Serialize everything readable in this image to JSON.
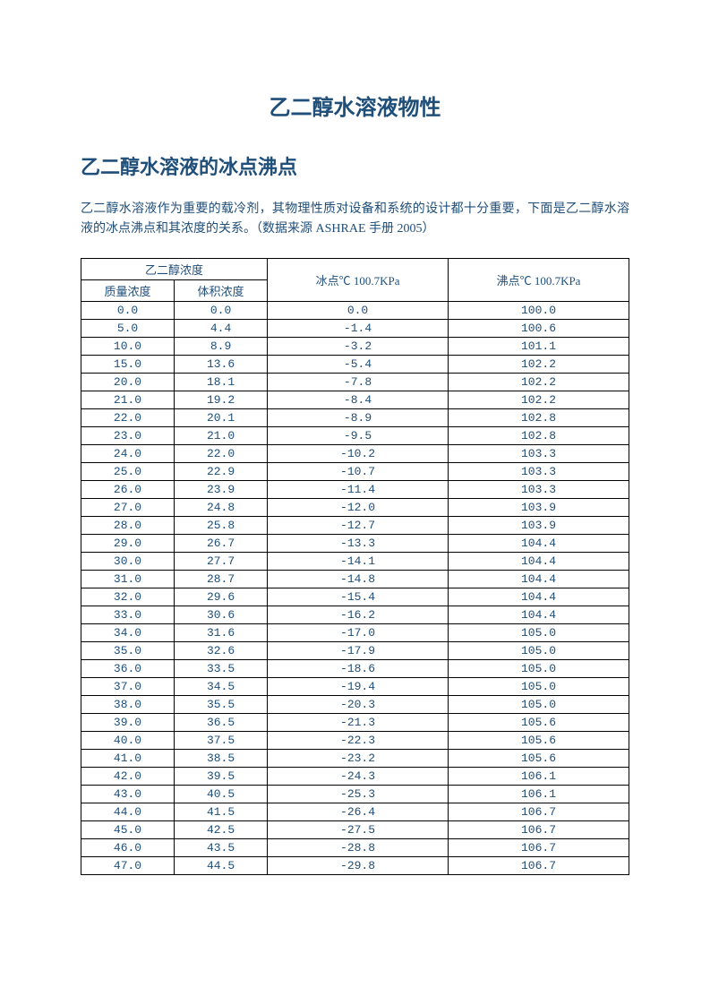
{
  "title": "乙二醇水溶液物性",
  "subtitle": "乙二醇水溶液的冰点沸点",
  "intro": "乙二醇水溶液作为重要的载冷剂，其物理性质对设备和系统的设计都十分重要，下面是乙二醇水溶液的冰点沸点和其浓度的关系。（数据来源 ASHRAE 手册 2005）",
  "table": {
    "header_group": "乙二醇浓度",
    "col_mass": "质量浓度",
    "col_vol": "体积浓度",
    "col_freeze": "冰点℃ 100.7KPa",
    "col_boil": "沸点℃ 100.7KPa",
    "rows": [
      [
        "0.0",
        "0.0",
        "0.0",
        "100.0"
      ],
      [
        "5.0",
        "4.4",
        "-1.4",
        "100.6"
      ],
      [
        "10.0",
        "8.9",
        "-3.2",
        "101.1"
      ],
      [
        "15.0",
        "13.6",
        "-5.4",
        "102.2"
      ],
      [
        "20.0",
        "18.1",
        "-7.8",
        "102.2"
      ],
      [
        "21.0",
        "19.2",
        "-8.4",
        "102.2"
      ],
      [
        "22.0",
        "20.1",
        "-8.9",
        "102.8"
      ],
      [
        "23.0",
        "21.0",
        "-9.5",
        "102.8"
      ],
      [
        "24.0",
        "22.0",
        "-10.2",
        "103.3"
      ],
      [
        "25.0",
        "22.9",
        "-10.7",
        "103.3"
      ],
      [
        "26.0",
        "23.9",
        "-11.4",
        "103.3"
      ],
      [
        "27.0",
        "24.8",
        "-12.0",
        "103.9"
      ],
      [
        "28.0",
        "25.8",
        "-12.7",
        "103.9"
      ],
      [
        "29.0",
        "26.7",
        "-13.3",
        "104.4"
      ],
      [
        "30.0",
        "27.7",
        "-14.1",
        "104.4"
      ],
      [
        "31.0",
        "28.7",
        "-14.8",
        "104.4"
      ],
      [
        "32.0",
        "29.6",
        "-15.4",
        "104.4"
      ],
      [
        "33.0",
        "30.6",
        "-16.2",
        "104.4"
      ],
      [
        "34.0",
        "31.6",
        "-17.0",
        "105.0"
      ],
      [
        "35.0",
        "32.6",
        "-17.9",
        "105.0"
      ],
      [
        "36.0",
        "33.5",
        "-18.6",
        "105.0"
      ],
      [
        "37.0",
        "34.5",
        "-19.4",
        "105.0"
      ],
      [
        "38.0",
        "35.5",
        "-20.3",
        "105.0"
      ],
      [
        "39.0",
        "36.5",
        "-21.3",
        "105.6"
      ],
      [
        "40.0",
        "37.5",
        "-22.3",
        "105.6"
      ],
      [
        "41.0",
        "38.5",
        "-23.2",
        "105.6"
      ],
      [
        "42.0",
        "39.5",
        "-24.3",
        "106.1"
      ],
      [
        "43.0",
        "40.5",
        "-25.3",
        "106.1"
      ],
      [
        "44.0",
        "41.5",
        "-26.4",
        "106.7"
      ],
      [
        "45.0",
        "42.5",
        "-27.5",
        "106.7"
      ],
      [
        "46.0",
        "43.5",
        "-28.8",
        "106.7"
      ],
      [
        "47.0",
        "44.5",
        "-29.8",
        "106.7"
      ]
    ]
  },
  "colors": {
    "text": "#1f4e79",
    "border": "#000000",
    "background": "#ffffff"
  }
}
